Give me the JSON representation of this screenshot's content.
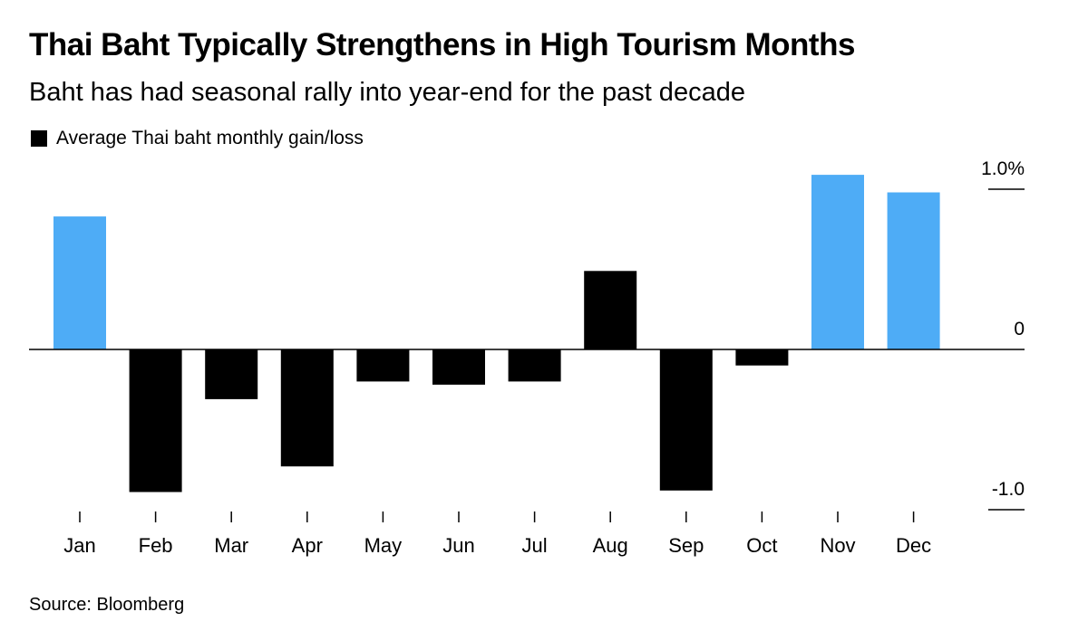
{
  "header": {
    "title": "Thai Baht Typically Strengthens in High Tourism Months",
    "subtitle": "Baht has had seasonal rally into year-end for the past decade"
  },
  "legend": {
    "label": "Average Thai baht monthly gain/loss"
  },
  "source": "Source: Bloomberg",
  "colors": {
    "highlight": "#4eacf6",
    "default": "#000000",
    "axis": "#000000"
  },
  "chart_data": {
    "type": "bar",
    "title": "Thai Baht Typically Strengthens in High Tourism Months",
    "subtitle": "Baht has had seasonal rally into year-end for the past decade",
    "xlabel": "",
    "ylabel": "",
    "categories": [
      "Jan",
      "Feb",
      "Mar",
      "Apr",
      "May",
      "Jun",
      "Jul",
      "Aug",
      "Sep",
      "Oct",
      "Nov",
      "Dec"
    ],
    "series": [
      {
        "name": "Average Thai baht monthly gain/loss",
        "values": [
          0.83,
          -0.89,
          -0.31,
          -0.73,
          -0.2,
          -0.22,
          -0.2,
          0.49,
          -0.88,
          -0.1,
          1.09,
          0.98
        ],
        "highlighted": [
          true,
          false,
          false,
          false,
          false,
          false,
          false,
          false,
          false,
          false,
          true,
          true
        ]
      }
    ],
    "ylim": [
      -1.0,
      1.0
    ],
    "y_ticks": [
      {
        "value": 1.0,
        "label": "1.0%"
      },
      {
        "value": 0,
        "label": "0"
      },
      {
        "value": -1.0,
        "label": "-1.0"
      }
    ],
    "grid": false,
    "legend_position": "top-left"
  }
}
